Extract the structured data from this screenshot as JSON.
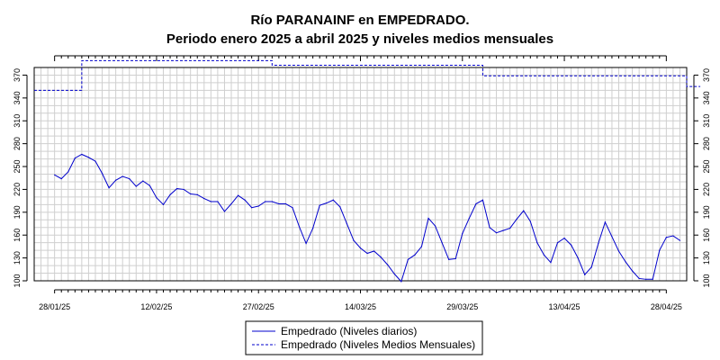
{
  "chart_data": {
    "type": "line",
    "title": "Río PARANAINF en EMPEDRADO.",
    "subtitle": "Periodo enero 2025 a abril 2025 y niveles medios mensuales",
    "xlabel": "",
    "ylabel": "",
    "x_range": [
      "2025-01-25",
      "2025-05-01"
    ],
    "ylim": [
      100,
      380
    ],
    "y_ticks": [
      100,
      130,
      160,
      190,
      220,
      250,
      280,
      310,
      340,
      370
    ],
    "grid": true,
    "legend_position": "bottom",
    "x_tick_labels": [
      {
        "date": "2025-01-28",
        "label": "28/01/25"
      },
      {
        "date": "2025-02-12",
        "label": "12/02/25"
      },
      {
        "date": "2025-02-27",
        "label": "27/02/25"
      },
      {
        "date": "2025-03-14",
        "label": "14/03/25"
      },
      {
        "date": "2025-03-29",
        "label": "29/03/25"
      },
      {
        "date": "2025-04-13",
        "label": "13/04/25"
      },
      {
        "date": "2025-04-28",
        "label": "28/04/25"
      }
    ],
    "series": [
      {
        "name": "Empedrado (Niveles diarios)",
        "style": "solid",
        "color": "#0000cc",
        "points": [
          [
            "2025-01-28",
            239
          ],
          [
            "2025-01-29",
            234
          ],
          [
            "2025-01-30",
            243
          ],
          [
            "2025-01-31",
            261
          ],
          [
            "2025-02-01",
            266
          ],
          [
            "2025-02-02",
            262
          ],
          [
            "2025-02-03",
            257
          ],
          [
            "2025-02-04",
            241
          ],
          [
            "2025-02-05",
            222
          ],
          [
            "2025-02-06",
            232
          ],
          [
            "2025-02-07",
            237
          ],
          [
            "2025-02-08",
            234
          ],
          [
            "2025-02-09",
            224
          ],
          [
            "2025-02-10",
            231
          ],
          [
            "2025-02-11",
            225
          ],
          [
            "2025-02-12",
            209
          ],
          [
            "2025-02-13",
            200
          ],
          [
            "2025-02-14",
            213
          ],
          [
            "2025-02-15",
            221
          ],
          [
            "2025-02-16",
            220
          ],
          [
            "2025-02-17",
            214
          ],
          [
            "2025-02-18",
            213
          ],
          [
            "2025-02-19",
            208
          ],
          [
            "2025-02-20",
            204
          ],
          [
            "2025-02-21",
            204
          ],
          [
            "2025-02-22",
            191
          ],
          [
            "2025-02-23",
            201
          ],
          [
            "2025-02-24",
            212
          ],
          [
            "2025-02-25",
            206
          ],
          [
            "2025-02-26",
            196
          ],
          [
            "2025-02-27",
            198
          ],
          [
            "2025-02-28",
            204
          ],
          [
            "2025-03-01",
            204
          ],
          [
            "2025-03-02",
            201
          ],
          [
            "2025-03-03",
            201
          ],
          [
            "2025-03-04",
            196
          ],
          [
            "2025-03-05",
            171
          ],
          [
            "2025-03-06",
            149
          ],
          [
            "2025-03-07",
            169
          ],
          [
            "2025-03-08",
            199
          ],
          [
            "2025-03-09",
            202
          ],
          [
            "2025-03-10",
            206
          ],
          [
            "2025-03-11",
            197
          ],
          [
            "2025-03-12",
            175
          ],
          [
            "2025-03-13",
            153
          ],
          [
            "2025-03-14",
            143
          ],
          [
            "2025-03-15",
            136
          ],
          [
            "2025-03-16",
            139
          ],
          [
            "2025-03-17",
            131
          ],
          [
            "2025-03-18",
            121
          ],
          [
            "2025-03-19",
            109
          ],
          [
            "2025-03-20",
            99
          ],
          [
            "2025-03-21",
            128
          ],
          [
            "2025-03-22",
            134
          ],
          [
            "2025-03-23",
            145
          ],
          [
            "2025-03-24",
            182
          ],
          [
            "2025-03-25",
            172
          ],
          [
            "2025-03-26",
            150
          ],
          [
            "2025-03-27",
            128
          ],
          [
            "2025-03-28",
            129
          ],
          [
            "2025-03-29",
            162
          ],
          [
            "2025-03-30",
            182
          ],
          [
            "2025-03-31",
            201
          ],
          [
            "2025-04-01",
            206
          ],
          [
            "2025-04-02",
            170
          ],
          [
            "2025-04-03",
            163
          ],
          [
            "2025-04-04",
            166
          ],
          [
            "2025-04-05",
            169
          ],
          [
            "2025-04-06",
            181
          ],
          [
            "2025-04-07",
            192
          ],
          [
            "2025-04-08",
            178
          ],
          [
            "2025-04-09",
            150
          ],
          [
            "2025-04-10",
            134
          ],
          [
            "2025-04-11",
            124
          ],
          [
            "2025-04-12",
            150
          ],
          [
            "2025-04-13",
            156
          ],
          [
            "2025-04-14",
            147
          ],
          [
            "2025-04-15",
            130
          ],
          [
            "2025-04-16",
            108
          ],
          [
            "2025-04-17",
            118
          ],
          [
            "2025-04-18",
            149
          ],
          [
            "2025-04-19",
            177
          ],
          [
            "2025-04-20",
            158
          ],
          [
            "2025-04-21",
            139
          ],
          [
            "2025-04-22",
            125
          ],
          [
            "2025-04-23",
            113
          ],
          [
            "2025-04-24",
            103
          ],
          [
            "2025-04-25",
            102
          ],
          [
            "2025-04-26",
            102
          ],
          [
            "2025-04-27",
            140
          ],
          [
            "2025-04-28",
            157
          ],
          [
            "2025-04-29",
            159
          ],
          [
            "2025-04-30",
            153
          ]
        ]
      },
      {
        "name": "Empedrado (Niveles Medios Mensuales)",
        "style": "dashed",
        "color": "#0000cc",
        "steps": [
          {
            "from": "2025-01-25",
            "to": "2025-02-01",
            "value": 350
          },
          {
            "from": "2025-02-01",
            "to": "2025-03-01",
            "value": 389
          },
          {
            "from": "2025-03-01",
            "to": "2025-04-01",
            "value": 383
          },
          {
            "from": "2025-04-01",
            "to": "2025-05-01",
            "value": 369
          },
          {
            "from": "2025-05-01",
            "to": "2025-05-03",
            "value": 355
          }
        ]
      }
    ]
  }
}
